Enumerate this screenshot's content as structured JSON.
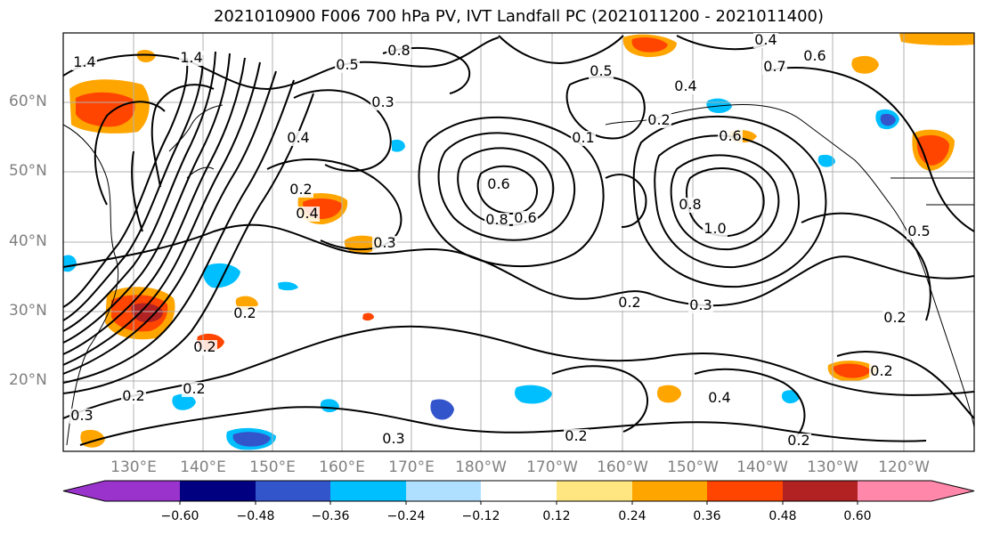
{
  "title": "2021010900 F006 700 hPa PV, IVT Landfall PC (2021011200 - 2021011400)",
  "lat_labels": [
    "60°N",
    "50°N",
    "40°N",
    "30°N",
    "20°N"
  ],
  "lon_labels": [
    "130°E",
    "140°E",
    "150°E",
    "160°E",
    "170°E",
    "180°W",
    "170°W",
    "160°W",
    "150°W",
    "140°W",
    "130°W",
    "120°W"
  ],
  "colorbar": {
    "ticks": [
      "−0.60",
      "−0.48",
      "−0.36",
      "−0.24",
      "−0.12",
      "0.12",
      "0.24",
      "0.36",
      "0.48",
      "0.60"
    ],
    "colors": [
      "#9933cc",
      "#000080",
      "#3355cc",
      "#00bfff",
      "#b0e0ff",
      "#ffffff",
      "#ffe680",
      "#ffa500",
      "#ff4500",
      "#b22222",
      "#ff88aa"
    ]
  },
  "contour_labels": [
    "1.4",
    "1.4",
    "0.5",
    "0.8",
    "0.3",
    "0.4",
    "0.5",
    "0.7",
    "0.6",
    "0.2",
    "0.2",
    "0.6",
    "0.4",
    "0.6",
    "0.8",
    "0.6",
    "0.8",
    "1.0",
    "0.4",
    "0.2",
    "0.2",
    "0.2",
    "0.3",
    "0.3",
    "0.2",
    "0.5",
    "0.2",
    "0.2",
    "0.2",
    "0.2",
    "0.4",
    "0.2",
    "0.3",
    "0.3",
    "0.4",
    "0.1"
  ]
}
